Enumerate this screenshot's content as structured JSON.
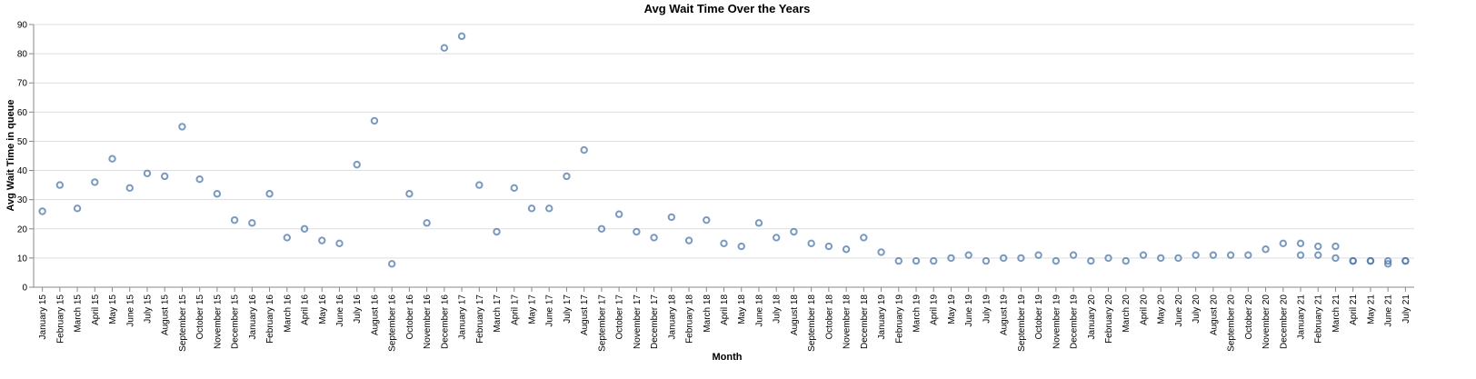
{
  "chart_data": {
    "type": "scatter",
    "title": "Avg Wait Time Over the Years",
    "xlabel": "Month",
    "ylabel": "Avg Wait Time in queue",
    "ylim": [
      0,
      90
    ],
    "yticks": [
      0,
      10,
      20,
      30,
      40,
      50,
      60,
      70,
      80,
      90
    ],
    "grid": true,
    "point_color": "#4c78a8",
    "categories": [
      "January 15",
      "February 15",
      "March 15",
      "April 15",
      "May 15",
      "June 15",
      "July 15",
      "August 15",
      "September 15",
      "October 15",
      "November 15",
      "December 15",
      "January 16",
      "February 16",
      "March 16",
      "April 16",
      "May 16",
      "June 16",
      "July 16",
      "August 16",
      "September 16",
      "October 16",
      "November 16",
      "December 16",
      "January 17",
      "February 17",
      "March 17",
      "April 17",
      "May 17",
      "June 17",
      "July 17",
      "August 17",
      "September 17",
      "October 17",
      "November 17",
      "December 17",
      "January 18",
      "February 18",
      "March 18",
      "April 18",
      "May 18",
      "June 18",
      "July 18",
      "August 18",
      "September 18",
      "October 18",
      "November 18",
      "December 18",
      "January 19",
      "February 19",
      "March 19",
      "April 19",
      "May 19",
      "June 19",
      "July 19",
      "August 19",
      "September 19",
      "October 19",
      "November 19",
      "December 19",
      "January 20",
      "February 20",
      "March 20",
      "April 20",
      "May 20",
      "June 20",
      "July 20",
      "August 20",
      "September 20",
      "October 20",
      "November 20",
      "December 20",
      "January 21",
      "February 21",
      "March 21",
      "April 21",
      "May 21",
      "June 21",
      "July 21"
    ],
    "points": [
      {
        "x": "January 15",
        "y": 26
      },
      {
        "x": "February 15",
        "y": 35
      },
      {
        "x": "March 15",
        "y": 27
      },
      {
        "x": "April 15",
        "y": 36
      },
      {
        "x": "May 15",
        "y": 44
      },
      {
        "x": "June 15",
        "y": 34
      },
      {
        "x": "July 15",
        "y": 39
      },
      {
        "x": "August 15",
        "y": 38
      },
      {
        "x": "September 15",
        "y": 55
      },
      {
        "x": "October 15",
        "y": 37
      },
      {
        "x": "November 15",
        "y": 32
      },
      {
        "x": "December 15",
        "y": 23
      },
      {
        "x": "January 16",
        "y": 22
      },
      {
        "x": "February 16",
        "y": 32
      },
      {
        "x": "March 16",
        "y": 17
      },
      {
        "x": "April 16",
        "y": 20
      },
      {
        "x": "May 16",
        "y": 16
      },
      {
        "x": "June 16",
        "y": 15
      },
      {
        "x": "July 16",
        "y": 42
      },
      {
        "x": "August 16",
        "y": 57
      },
      {
        "x": "September 16",
        "y": 8
      },
      {
        "x": "October 16",
        "y": 32
      },
      {
        "x": "November 16",
        "y": 22
      },
      {
        "x": "December 16",
        "y": 82
      },
      {
        "x": "January 17",
        "y": 86
      },
      {
        "x": "February 17",
        "y": 35
      },
      {
        "x": "March 17",
        "y": 19
      },
      {
        "x": "April 17",
        "y": 34
      },
      {
        "x": "May 17",
        "y": 27
      },
      {
        "x": "June 17",
        "y": 27
      },
      {
        "x": "July 17",
        "y": 38
      },
      {
        "x": "August 17",
        "y": 47
      },
      {
        "x": "September 17",
        "y": 20
      },
      {
        "x": "October 17",
        "y": 25
      },
      {
        "x": "November 17",
        "y": 19
      },
      {
        "x": "December 17",
        "y": 17
      },
      {
        "x": "January 18",
        "y": 24
      },
      {
        "x": "February 18",
        "y": 16
      },
      {
        "x": "March 18",
        "y": 23
      },
      {
        "x": "April 18",
        "y": 15
      },
      {
        "x": "May 18",
        "y": 14
      },
      {
        "x": "June 18",
        "y": 22
      },
      {
        "x": "July 18",
        "y": 17
      },
      {
        "x": "August 18",
        "y": 19
      },
      {
        "x": "September 18",
        "y": 15
      },
      {
        "x": "October 18",
        "y": 14
      },
      {
        "x": "November 18",
        "y": 13
      },
      {
        "x": "December 18",
        "y": 17
      },
      {
        "x": "January 19",
        "y": 12
      },
      {
        "x": "February 19",
        "y": 9
      },
      {
        "x": "March 19",
        "y": 9
      },
      {
        "x": "April 19",
        "y": 9
      },
      {
        "x": "May 19",
        "y": 10
      },
      {
        "x": "June 19",
        "y": 11
      },
      {
        "x": "July 19",
        "y": 9
      },
      {
        "x": "August 19",
        "y": 10
      },
      {
        "x": "September 19",
        "y": 10
      },
      {
        "x": "October 19",
        "y": 11
      },
      {
        "x": "November 19",
        "y": 9
      },
      {
        "x": "December 19",
        "y": 11
      },
      {
        "x": "January 20",
        "y": 9
      },
      {
        "x": "February 20",
        "y": 10
      },
      {
        "x": "March 20",
        "y": 9
      },
      {
        "x": "April 20",
        "y": 11
      },
      {
        "x": "May 20",
        "y": 10
      },
      {
        "x": "June 20",
        "y": 10
      },
      {
        "x": "July 20",
        "y": 11
      },
      {
        "x": "August 20",
        "y": 11
      },
      {
        "x": "September 20",
        "y": 11
      },
      {
        "x": "October 20",
        "y": 11
      },
      {
        "x": "November 20",
        "y": 13
      },
      {
        "x": "December 20",
        "y": 15
      },
      {
        "x": "January 21",
        "y": 15
      },
      {
        "x": "January 21",
        "y": 11
      },
      {
        "x": "February 21",
        "y": 14
      },
      {
        "x": "February 21",
        "y": 11
      },
      {
        "x": "March 21",
        "y": 14
      },
      {
        "x": "March 21",
        "y": 10
      },
      {
        "x": "April 21",
        "y": 9
      },
      {
        "x": "April 21",
        "y": 9
      },
      {
        "x": "May 21",
        "y": 9
      },
      {
        "x": "May 21",
        "y": 9
      },
      {
        "x": "June 21",
        "y": 9
      },
      {
        "x": "June 21",
        "y": 8
      },
      {
        "x": "July 21",
        "y": 9
      },
      {
        "x": "July 21",
        "y": 9
      }
    ]
  }
}
